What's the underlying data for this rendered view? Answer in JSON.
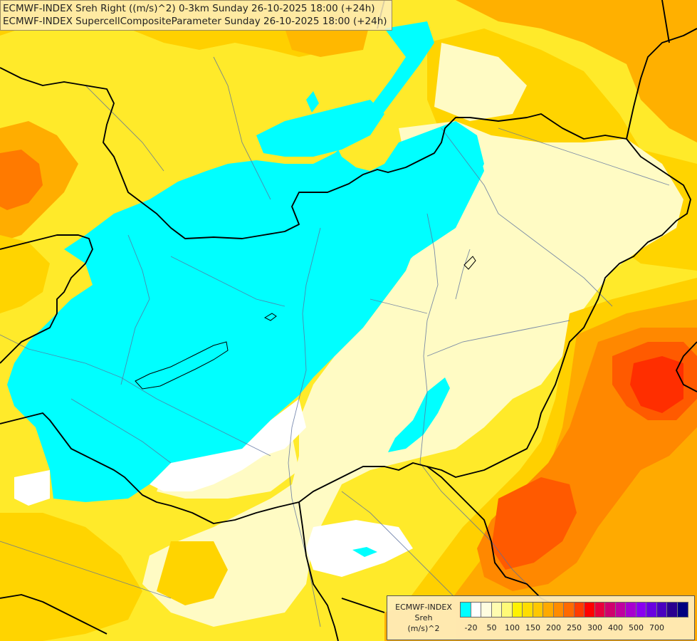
{
  "header": {
    "line1": "ECMWF-INDEX Sreh Right ((m/s)^2) 0-3km Sunday 26-10-2025 18:00 (+24h)",
    "line2": "ECMWF-INDEX SupercellCompositeParameter Sunday 26-10-2025 18:00 (+24h)"
  },
  "legend": {
    "line1": "ECMWF-INDEX",
    "line2": "Sreh",
    "line3": "(m/s)^2",
    "swatches": [
      "#00ffff",
      "#ffffff",
      "#fffde0",
      "#fffcb0",
      "#fffa78",
      "#fff200",
      "#ffdd00",
      "#ffc800",
      "#ffaa00",
      "#ff8c00",
      "#ff6a00",
      "#ff3c00",
      "#ff0000",
      "#e8003c",
      "#d0006e",
      "#c000a0",
      "#a800d0",
      "#8a00f0",
      "#6a00e0",
      "#4a00c0",
      "#2a0090",
      "#000080"
    ],
    "ticks": [
      {
        "label": "-20",
        "at": 1
      },
      {
        "label": "50",
        "at": 3
      },
      {
        "label": "100",
        "at": 5
      },
      {
        "label": "150",
        "at": 7
      },
      {
        "label": "200",
        "at": 9
      },
      {
        "label": "250",
        "at": 11
      },
      {
        "label": "300",
        "at": 13
      },
      {
        "label": "400",
        "at": 15
      },
      {
        "label": "500",
        "at": 17
      },
      {
        "label": "700",
        "at": 19
      }
    ]
  },
  "colors": {
    "cyan": "#00ffff",
    "pale_yellow": "#fffcc0",
    "yellow": "#fff200",
    "gold": "#ffd400",
    "orange": "#ffab00",
    "dark_orange": "#ff7d00",
    "red_orange": "#ff4400",
    "white": "#ffffff",
    "border": "#000000",
    "river": "#5a6f9e"
  }
}
